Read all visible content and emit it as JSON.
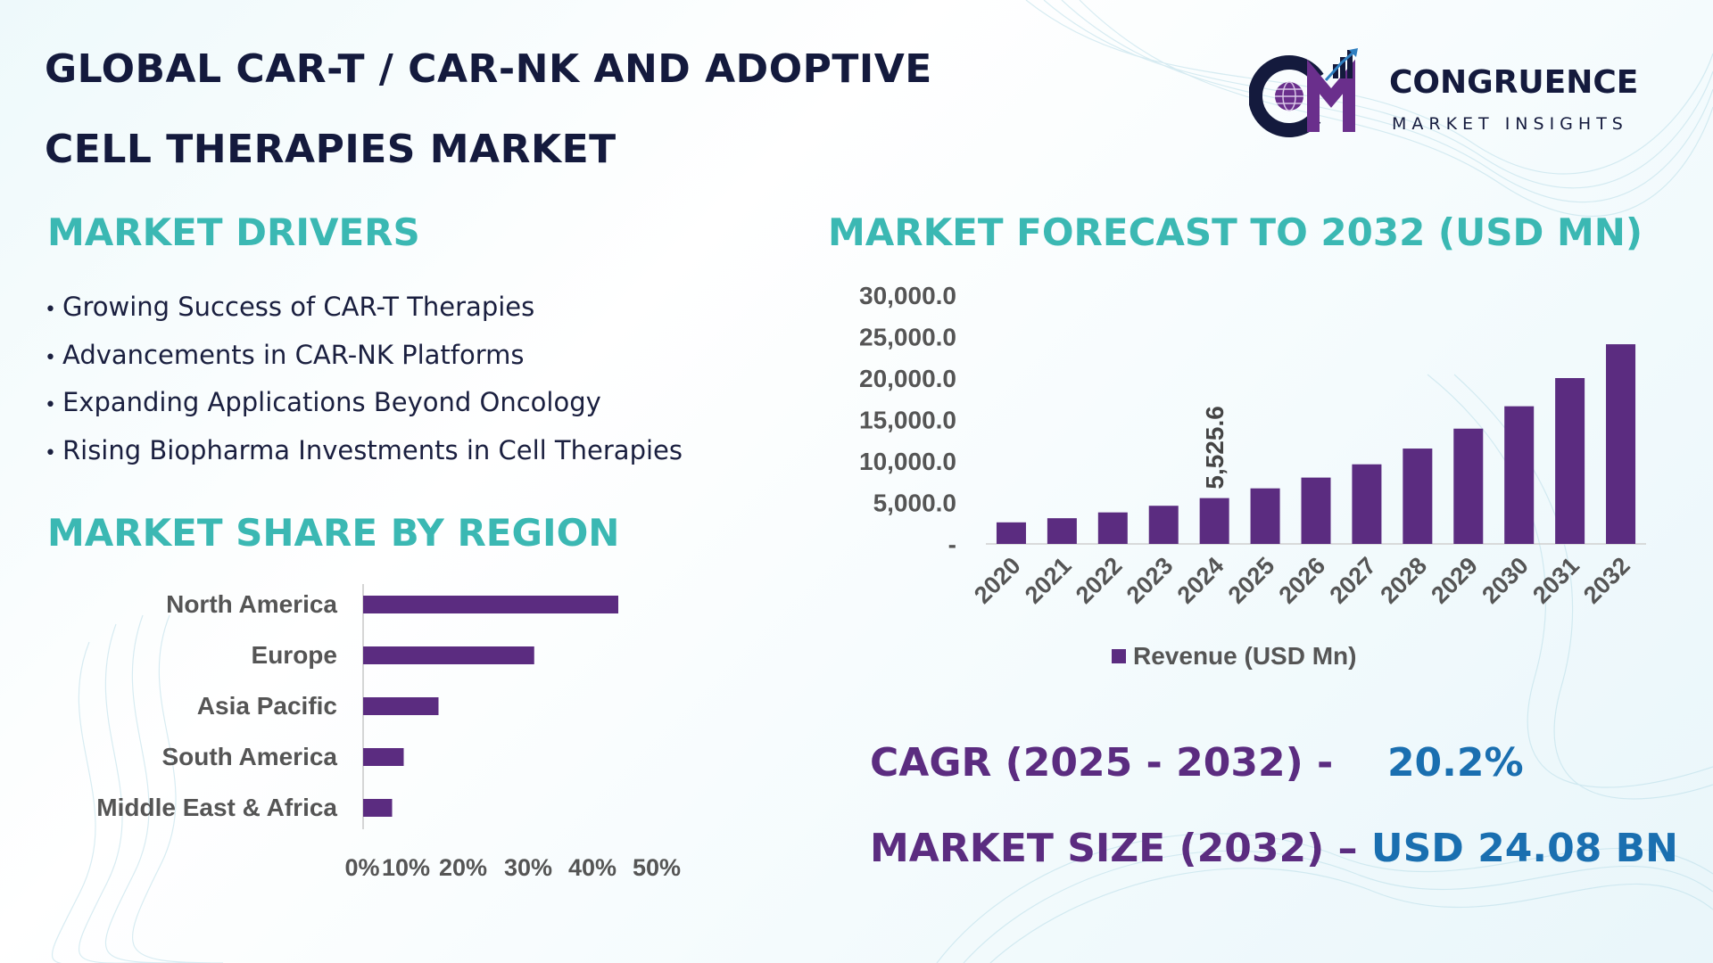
{
  "header": {
    "title_line1": "GLOBAL CAR-T / CAR-NK AND ADOPTIVE",
    "title_line2": "CELL THERAPIES MARKET"
  },
  "logo": {
    "name": "CONGRUENCE",
    "tagline": "MARKET INSIGHTS",
    "icon": "cm-globe-chart-logo",
    "colors": {
      "navy": "#141a3d",
      "purple": "#6a2f8c",
      "blue": "#2f7fc0"
    }
  },
  "drivers": {
    "heading": "MARKET DRIVERS",
    "items": [
      "Growing Success of CAR-T Therapies",
      "Advancements in CAR-NK Platforms",
      "Expanding Applications Beyond Oncology",
      "Rising Biopharma Investments in Cell Therapies"
    ]
  },
  "region": {
    "heading": "MARKET SHARE BY REGION"
  },
  "forecast": {
    "heading": "MARKET FORECAST TO 2032 (USD MN)"
  },
  "stats": {
    "cagr_label": "CAGR (2025 - 2032) -",
    "cagr_value": "20.2%",
    "size_label": "MARKET SIZE (2032) –",
    "size_value": "USD 24.08 BN"
  },
  "colors": {
    "accent_teal": "#3bb8b3",
    "bar_purple": "#5b2c80",
    "title_navy": "#141a3d",
    "value_blue": "#1a6fb0"
  },
  "chart_data": [
    {
      "type": "bar",
      "orientation": "horizontal",
      "categories": [
        "North America",
        "Europe",
        "Asia Pacific",
        "South America",
        "Middle East & Africa"
      ],
      "values": [
        44,
        29.5,
        13,
        7,
        5
      ],
      "xlim": [
        0,
        50
      ],
      "x_ticks": [
        "0%",
        "10%",
        "20%",
        "30%",
        "40%",
        "50%"
      ],
      "title": "",
      "grid": false
    },
    {
      "type": "bar",
      "categories": [
        "2020",
        "2021",
        "2022",
        "2023",
        "2024",
        "2025",
        "2026",
        "2027",
        "2028",
        "2029",
        "2030",
        "2031",
        "2032"
      ],
      "series": [
        {
          "name": "Revenue (USD Mn)",
          "values": [
            2600,
            3100,
            3800,
            4600,
            5525.6,
            6700,
            8000,
            9600,
            11500,
            13900,
            16600,
            20000,
            24080
          ]
        }
      ],
      "data_labels": [
        {
          "category": "2024",
          "text": "5,525.6"
        }
      ],
      "ylim": [
        0,
        30000
      ],
      "y_ticks": [
        "-",
        "5,000.0",
        "10,000.0",
        "15,000.0",
        "20,000.0",
        "25,000.0",
        "30,000.0"
      ],
      "legend": "bottom",
      "title": "",
      "grid": false
    }
  ]
}
